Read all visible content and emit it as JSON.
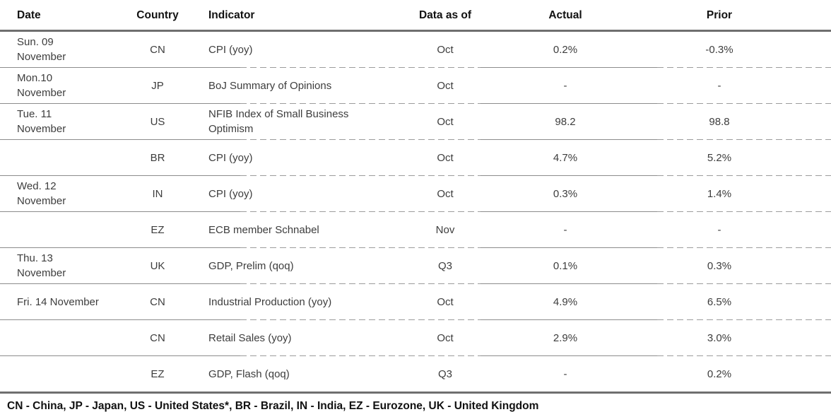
{
  "table": {
    "columns": [
      {
        "key": "date",
        "label": "Date"
      },
      {
        "key": "country",
        "label": "Country"
      },
      {
        "key": "indicator",
        "label": "Indicator"
      },
      {
        "key": "data_as_of",
        "label": "Data as of"
      },
      {
        "key": "actual",
        "label": "Actual"
      },
      {
        "key": "prior",
        "label": "Prior"
      }
    ],
    "rows": [
      {
        "date": "Sun. 09\nNovember",
        "country": "CN",
        "indicator": "CPI (yoy)",
        "data_as_of": "Oct",
        "actual": "0.2%",
        "prior": "-0.3%"
      },
      {
        "date": "Mon.10\nNovember",
        "country": "JP",
        "indicator": "BoJ Summary of Opinions",
        "data_as_of": "Oct",
        "actual": "-",
        "prior": "-"
      },
      {
        "date": "Tue. 11\nNovember",
        "country": "US",
        "indicator": "NFIB Index of Small Business Optimism",
        "data_as_of": "Oct",
        "actual": "98.2",
        "prior": "98.8"
      },
      {
        "date": "",
        "country": "BR",
        "indicator": "CPI (yoy)",
        "data_as_of": "Oct",
        "actual": "4.7%",
        "prior": "5.2%"
      },
      {
        "date": "Wed. 12\nNovember",
        "country": "IN",
        "indicator": "CPI (yoy)",
        "data_as_of": "Oct",
        "actual": "0.3%",
        "prior": "1.4%"
      },
      {
        "date": "",
        "country": "EZ",
        "indicator": "ECB member Schnabel",
        "data_as_of": "Nov",
        "actual": "-",
        "prior": "-"
      },
      {
        "date": "Thu. 13\nNovember",
        "country": "UK",
        "indicator": "GDP, Prelim (qoq)",
        "data_as_of": "Q3",
        "actual": "0.1%",
        "prior": "0.3%"
      },
      {
        "date": "Fri. 14 November",
        "country": "CN",
        "indicator": "Industrial Production (yoy)",
        "data_as_of": "Oct",
        "actual": "4.9%",
        "prior": "6.5%"
      },
      {
        "date": "",
        "country": "CN",
        "indicator": "Retail Sales (yoy)",
        "data_as_of": "Oct",
        "actual": "2.9%",
        "prior": "3.0%"
      },
      {
        "date": "",
        "country": "EZ",
        "indicator": "GDP, Flash (qoq)",
        "data_as_of": "Q3",
        "actual": "-",
        "prior": "0.2%"
      }
    ]
  },
  "footer": {
    "legend": "CN - China, JP - Japan, US - United States*, BR - Brazil, IN - India, EZ - Eurozone, UK - United Kingdom"
  },
  "colors": {
    "rule_heavy": "#6f6f6f",
    "rule_solid_thin": "#8c8c8c",
    "rule_dashed": "#9c9c9c",
    "text_header": "#111111",
    "text_body": "#3d3d3d"
  }
}
